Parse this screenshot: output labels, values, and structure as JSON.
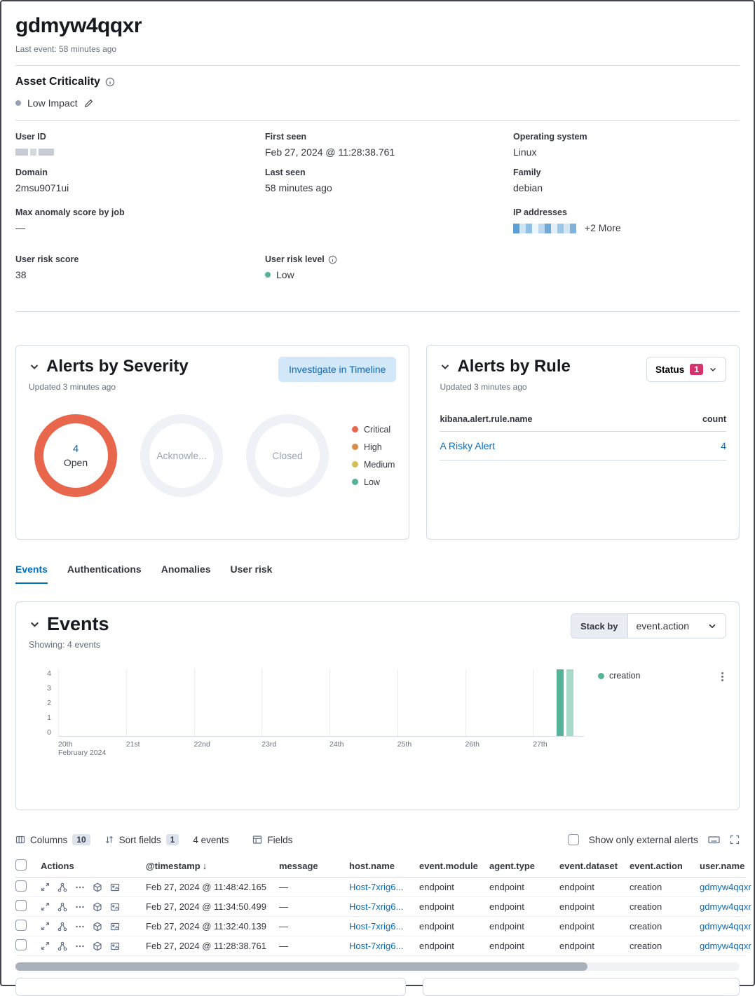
{
  "colors": {
    "link": "#0071c2",
    "critical": "#e7664c",
    "high": "#da8b45",
    "medium": "#d6bf57",
    "low": "#54b399",
    "status_badge": "#d6326e",
    "open_donut_ring": "#e7664c",
    "bar": "#54b399",
    "bar_light": "#a7dbc9"
  },
  "header": {
    "title": "gdmyw4qqxr",
    "last_event": "Last event: 58 minutes ago"
  },
  "asset_criticality": {
    "heading": "Asset Criticality",
    "value": "Low Impact"
  },
  "details": {
    "col1": [
      {
        "label": "User ID",
        "value": ""
      },
      {
        "label": "Domain",
        "value": "2msu9071ui"
      },
      {
        "label": "Max anomaly score by job",
        "value": "—"
      }
    ],
    "col2": [
      {
        "label": "First seen",
        "value": "Feb 27, 2024 @ 11:28:38.761"
      },
      {
        "label": "Last seen",
        "value": "58 minutes ago"
      }
    ],
    "col3": [
      {
        "label": "Operating system",
        "value": "Linux"
      },
      {
        "label": "Family",
        "value": "debian"
      },
      {
        "label": "IP addresses",
        "value": "",
        "more": "+2 More"
      }
    ]
  },
  "risk": {
    "score_label": "User risk score",
    "score": "38",
    "level_label": "User risk level",
    "level": "Low"
  },
  "alerts_by_severity": {
    "title": "Alerts by Severity",
    "updated": "Updated 3 minutes ago",
    "button": "Investigate in Timeline",
    "donuts": [
      {
        "count": "4",
        "label": "Open"
      },
      {
        "count": "",
        "label": "Acknowle..."
      },
      {
        "count": "",
        "label": "Closed"
      }
    ],
    "legend": [
      {
        "label": "Critical",
        "color": "#e7664c"
      },
      {
        "label": "High",
        "color": "#da8b45"
      },
      {
        "label": "Medium",
        "color": "#d6bf57"
      },
      {
        "label": "Low",
        "color": "#54b399"
      }
    ]
  },
  "alerts_by_rule": {
    "title": "Alerts by Rule",
    "updated": "Updated 3 minutes ago",
    "status_label": "Status",
    "status_count": "1",
    "columns": {
      "name": "kibana.alert.rule.name",
      "count": "count"
    },
    "rows": [
      {
        "name": "A Risky Alert",
        "count": "4"
      }
    ]
  },
  "tabs": [
    {
      "label": "Events",
      "active": true
    },
    {
      "label": "Authentications",
      "active": false
    },
    {
      "label": "Anomalies",
      "active": false
    },
    {
      "label": "User risk",
      "active": false
    }
  ],
  "events_panel": {
    "title": "Events",
    "showing": "Showing: 4 events",
    "stack_by_label": "Stack by",
    "stack_by_value": "event.action",
    "chart_data": {
      "type": "bar",
      "title": "Events",
      "x": [
        "20th",
        "21st",
        "22nd",
        "23rd",
        "24th",
        "25th",
        "26th",
        "27th"
      ],
      "x_sublabel": "February 2024",
      "xlabel": "",
      "ylabel": "",
      "yticks": [
        0,
        1,
        2,
        3,
        4
      ],
      "ylim": [
        0,
        4
      ],
      "grid": "vertical",
      "legend_position": "right",
      "series": [
        {
          "name": "creation",
          "values": [
            0,
            0,
            0,
            0,
            0,
            0,
            0,
            4
          ]
        }
      ],
      "bars": [
        {
          "pos": 94.8,
          "value": 4,
          "color": "#54b399"
        },
        {
          "pos": 96.6,
          "value": 4,
          "color": "#a7dbc9"
        }
      ]
    }
  },
  "events_table": {
    "toolbar": {
      "columns_label": "Columns",
      "columns_count": "10",
      "sort_label": "Sort fields",
      "sort_count": "1",
      "events_count": "4 events",
      "fields_label": "Fields",
      "external_label": "Show only external alerts"
    },
    "headers": {
      "actions": "Actions",
      "timestamp": "@timestamp",
      "message": "message",
      "host": "host.name",
      "module": "event.module",
      "agent": "agent.type",
      "dataset": "event.dataset",
      "action": "event.action",
      "user": "user.name"
    },
    "rows": [
      {
        "timestamp": "Feb 27, 2024 @ 11:48:42.165",
        "message": "—",
        "host": "Host-7xrig6...",
        "module": "endpoint",
        "agent": "endpoint",
        "dataset": "endpoint",
        "action": "creation",
        "user": "gdmyw4qqxr"
      },
      {
        "timestamp": "Feb 27, 2024 @ 11:34:50.499",
        "message": "—",
        "host": "Host-7xrig6...",
        "module": "endpoint",
        "agent": "endpoint",
        "dataset": "endpoint",
        "action": "creation",
        "user": "gdmyw4qqxr"
      },
      {
        "timestamp": "Feb 27, 2024 @ 11:32:40.139",
        "message": "—",
        "host": "Host-7xrig6...",
        "module": "endpoint",
        "agent": "endpoint",
        "dataset": "endpoint",
        "action": "creation",
        "user": "gdmyw4qqxr"
      },
      {
        "timestamp": "Feb 27, 2024 @ 11:28:38.761",
        "message": "—",
        "host": "Host-7xrig6...",
        "module": "endpoint",
        "agent": "endpoint",
        "dataset": "endpoint",
        "action": "creation",
        "user": "gdmyw4qqxr"
      }
    ]
  }
}
